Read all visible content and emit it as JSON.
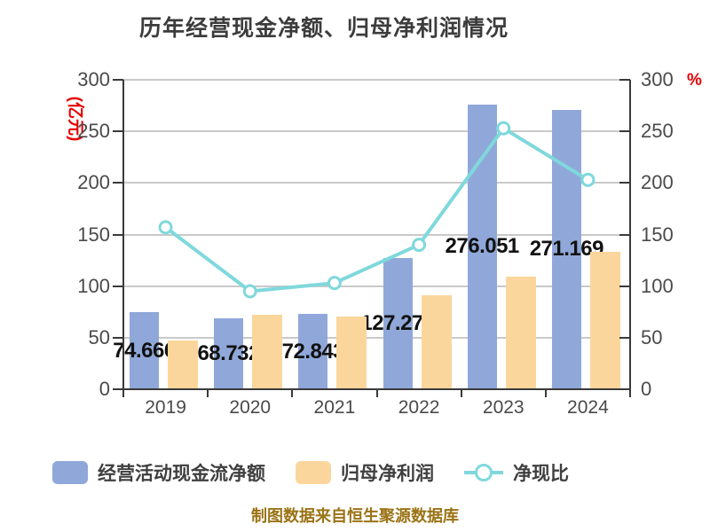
{
  "title": "历年经营现金净额、归母净利润情况",
  "footer": "制图数据来自恒生聚源数据库",
  "axes": {
    "left_unit": "(亿元)",
    "right_unit": "%",
    "left_ticks": [
      "0",
      "50",
      "100",
      "150",
      "200",
      "250",
      "300"
    ],
    "right_ticks": [
      "0",
      "50",
      "100",
      "150",
      "200",
      "250",
      "300"
    ],
    "left_range": [
      0,
      300
    ],
    "right_range": [
      0,
      300
    ]
  },
  "legend": {
    "items": [
      {
        "label": "经营活动现金流净额",
        "marker": "bar",
        "color": "#8fa8d9"
      },
      {
        "label": "归母净利润",
        "marker": "bar",
        "color": "#fbd69c"
      },
      {
        "label": "净现比",
        "marker": "line-dot",
        "color": "#7fd8dc"
      }
    ]
  },
  "colors": {
    "operating_cashflow_bar": "#8fa8d9",
    "net_profit_bar": "#fbd69c",
    "ratio_line": "#7fd8dc",
    "axis_unit_red": "#e60000",
    "title_text": "#3c3c3c",
    "tick_text": "#4a4a4a",
    "bar_label_text": "#111111",
    "gridline": "#c9c9c9",
    "axis_line": "#3a3a3a",
    "footer_text": "#9a7315",
    "background": "#ffffff"
  },
  "chart_data": {
    "type": "bar",
    "categories": [
      "2019",
      "2020",
      "2021",
      "2022",
      "2023",
      "2024"
    ],
    "series": [
      {
        "name": "经营活动现金流净额",
        "chart_type": "bar",
        "axis": "left",
        "unit": "亿元",
        "values": [
          74.666,
          68.732,
          72.843,
          127.277,
          276.051,
          271.169
        ],
        "data_labels": [
          "74.666",
          "68.732",
          "72.843",
          "127.277",
          "276.051",
          "271.169"
        ]
      },
      {
        "name": "归母净利润",
        "chart_type": "bar",
        "axis": "left",
        "unit": "亿元",
        "estimated": true,
        "values": [
          47.5,
          72,
          70.5,
          91,
          109,
          133.5
        ]
      },
      {
        "name": "净现比",
        "chart_type": "line",
        "axis": "right",
        "unit": "%",
        "estimated": true,
        "values": [
          157,
          95,
          103,
          140,
          253,
          203
        ]
      }
    ],
    "ylim_left": [
      0,
      300
    ],
    "ylim_right": [
      0,
      300
    ],
    "grid": true,
    "legend_position": "bottom"
  }
}
